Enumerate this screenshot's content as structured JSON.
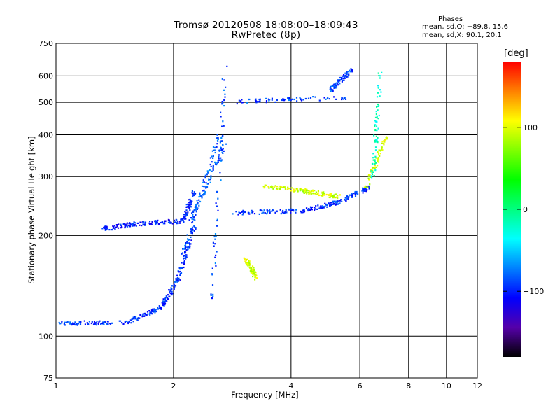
{
  "chart_data": {
    "type": "scatter",
    "title": "Tromsø 20120508 18:08:00–18:09:43",
    "subtitle": "RwPretec (8p)",
    "xlabel": "Frequency [MHz]",
    "ylabel": "Stationary phase Virtual Height [km]",
    "x_scale": "log",
    "y_scale": "log",
    "xlim": [
      1,
      12
    ],
    "ylim": [
      75,
      750
    ],
    "x_ticks": [
      "1",
      "2",
      "4",
      "6",
      "8",
      "10",
      "12"
    ],
    "y_ticks": [
      "75",
      "100",
      "200",
      "300",
      "400",
      "500",
      "600",
      "750"
    ],
    "grid": true,
    "phase_stats": {
      "title": "Phases",
      "line1": "mean, sd,O: −89.8, 15.6",
      "line2": "mean, sd,X:  90.1, 20.1"
    },
    "colorbar": {
      "label": "[deg]",
      "ticks": [
        "100",
        "0",
        "−100"
      ],
      "tick_values": [
        100,
        0,
        -100
      ],
      "range": [
        -180,
        180
      ],
      "colors": [
        "#000000",
        "#5500aa",
        "#0000ff",
        "#0080ff",
        "#00ffff",
        "#00ff80",
        "#00ff00",
        "#80ff00",
        "#ffff00",
        "#ff8000",
        "#ff0000"
      ]
    },
    "series": [
      {
        "phase": -95,
        "segments": [
          {
            "x": [
              1.0,
              1.5
            ],
            "y": [
              110,
              110
            ]
          },
          {
            "x": [
              1.5,
              1.85
            ],
            "y": [
              110,
              122
            ]
          },
          {
            "x": [
              1.85,
              2.05
            ],
            "y": [
              122,
              150
            ]
          },
          {
            "x": [
              2.05,
              2.25
            ],
            "y": [
              150,
              215
            ]
          }
        ]
      },
      {
        "phase": -100,
        "segments": [
          {
            "x": [
              1.3,
              1.6
            ],
            "y": [
              210,
              218
            ]
          },
          {
            "x": [
              1.6,
              2.1
            ],
            "y": [
              218,
              222
            ]
          },
          {
            "x": [
              2.1,
              2.25
            ],
            "y": [
              222,
              270
            ]
          }
        ]
      },
      {
        "phase": -95,
        "segments": [
          {
            "x": [
              2.85,
              4.2
            ],
            "y": [
              235,
              238
            ]
          },
          {
            "x": [
              4.2,
              5.2
            ],
            "y": [
              238,
              252
            ]
          },
          {
            "x": [
              5.2,
              6.3
            ],
            "y": [
              252,
              280
            ]
          }
        ]
      },
      {
        "phase": -90,
        "segments": [
          {
            "x": [
              2.9,
              5.6
            ],
            "y": [
              505,
              520
            ]
          },
          {
            "x": [
              5.0,
              5.7
            ],
            "y": [
              545,
              630
            ]
          }
        ]
      },
      {
        "phase": -85,
        "segments": [
          {
            "x": [
              2.1,
              2.6
            ],
            "y": [
              175,
              400
            ]
          },
          {
            "x": [
              2.2,
              2.7
            ],
            "y": [
              220,
              380
            ]
          },
          {
            "x": [
              2.5,
              2.7
            ],
            "y": [
              130,
              650
            ]
          }
        ]
      },
      {
        "phase": 95,
        "segments": [
          {
            "x": [
              3.4,
              4.4
            ],
            "y": [
              282,
              272
            ]
          },
          {
            "x": [
              4.4,
              5.3
            ],
            "y": [
              272,
              262
            ]
          },
          {
            "x": [
              6.2,
              7.0
            ],
            "y": [
              280,
              400
            ]
          },
          {
            "x": [
              3.05,
              3.25
            ],
            "y": [
              170,
              150
            ]
          }
        ]
      },
      {
        "phase": -20,
        "segments": [
          {
            "x": [
              6.45,
              6.75
            ],
            "y": [
              300,
              620
            ]
          }
        ]
      }
    ]
  }
}
